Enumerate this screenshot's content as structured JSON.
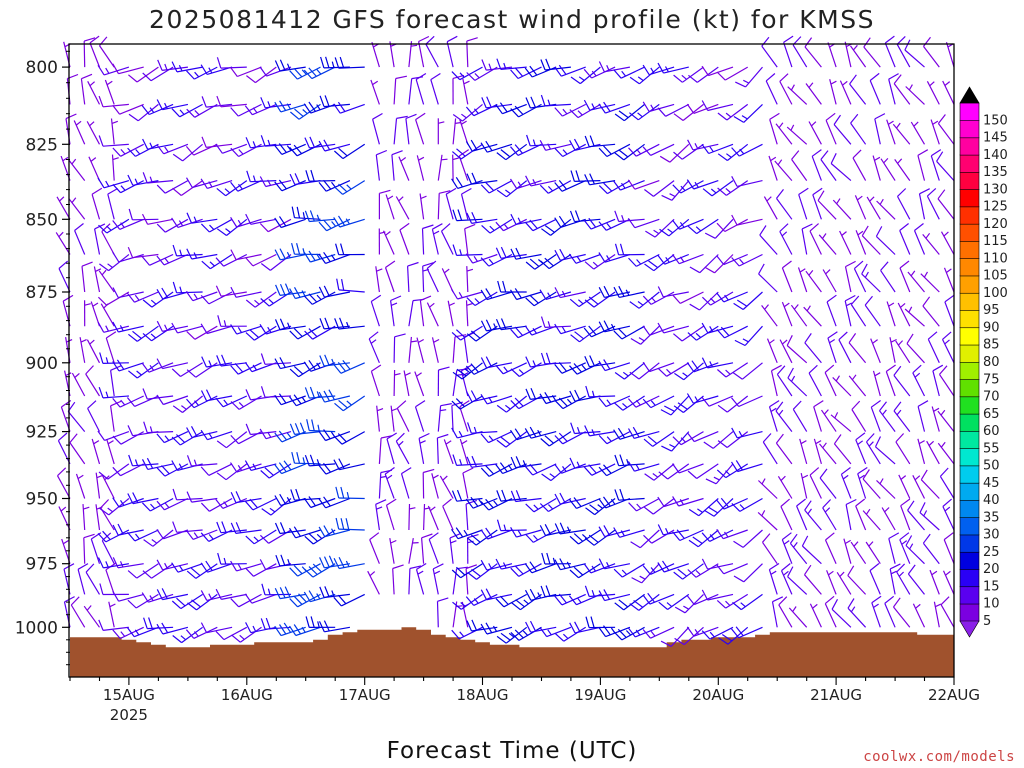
{
  "title": "2025081412 GFS forecast wind profile (kt) for KMSS",
  "credit": "coolwx.com/models",
  "chart_data": {
    "type": "wind-barb-profile",
    "title": "2025081412 GFS forecast wind profile (kt) for KMSS",
    "xlabel": "Forecast Time (UTC)",
    "ylabel": "",
    "y_units": "hPa",
    "y_scale": "log-pressure (reversed)",
    "ylim": [
      1020,
      793
    ],
    "xlim": [
      "2025-08-14 12Z",
      "2025-08-22 00Z"
    ],
    "y_ticks": [
      800,
      825,
      850,
      875,
      900,
      925,
      950,
      975,
      1000
    ],
    "x_ticks": [
      {
        "label": "15AUG",
        "sublabel": "2025",
        "time": "2025-08-15 00Z"
      },
      {
        "label": "16AUG",
        "sublabel": "",
        "time": "2025-08-16 00Z"
      },
      {
        "label": "17AUG",
        "sublabel": "",
        "time": "2025-08-17 00Z"
      },
      {
        "label": "18AUG",
        "sublabel": "",
        "time": "2025-08-18 00Z"
      },
      {
        "label": "19AUG",
        "sublabel": "",
        "time": "2025-08-19 00Z"
      },
      {
        "label": "20AUG",
        "sublabel": "",
        "time": "2025-08-20 00Z"
      },
      {
        "label": "21AUG",
        "sublabel": "",
        "time": "2025-08-21 00Z"
      },
      {
        "label": "22AUG",
        "sublabel": "",
        "time": "2025-08-22 00Z"
      }
    ],
    "forecast_interval_hours": 3,
    "barb_levels_hpa": [
      800,
      812,
      825,
      837,
      850,
      862,
      875,
      887,
      900,
      912,
      925,
      937,
      950,
      962,
      975,
      987,
      1000
    ],
    "colorbar": {
      "units": "kt",
      "labels": [
        5,
        10,
        15,
        20,
        25,
        30,
        35,
        40,
        45,
        50,
        55,
        60,
        65,
        70,
        75,
        80,
        85,
        90,
        95,
        100,
        105,
        110,
        115,
        120,
        125,
        130,
        135,
        140,
        145,
        150
      ],
      "colors": [
        "#7b00e0",
        "#5a00f0",
        "#2a00f5",
        "#0000e0",
        "#0038e8",
        "#0060f0",
        "#0088f0",
        "#00aaf0",
        "#00ccee",
        "#00e8d0",
        "#00e8a0",
        "#00e060",
        "#20e020",
        "#60e000",
        "#a0f000",
        "#e0f000",
        "#ffff00",
        "#ffe000",
        "#ffc000",
        "#ffa000",
        "#ff8800",
        "#ff7000",
        "#ff5000",
        "#ff3000",
        "#ff0000",
        "#ff0040",
        "#ff0070",
        "#ff00a0",
        "#ff00d0",
        "#ff00ff"
      ]
    },
    "surface_pressure_hpa": [
      1004,
      1004,
      1004,
      1004,
      1005,
      1006,
      1007,
      1008,
      1008,
      1008,
      1007,
      1007,
      1007,
      1006,
      1006,
      1006,
      1006,
      1005,
      1003,
      1002,
      1001,
      1001,
      1001,
      1000,
      1001,
      1003,
      1004,
      1005,
      1006,
      1007,
      1007,
      1008,
      1008,
      1008,
      1008,
      1008,
      1008,
      1008,
      1008,
      1008,
      1008,
      1006,
      1005,
      1005,
      1004,
      1004,
      1004,
      1003,
      1002,
      1002,
      1002,
      1002,
      1002,
      1002,
      1002,
      1002,
      1002,
      1002,
      1003,
      1003,
      1003
    ],
    "wind_regimes": [
      {
        "from": "2025-08-14 12Z",
        "to": "2025-08-15 00Z",
        "direction_deg": 340,
        "speed_kt": 8
      },
      {
        "from": "2025-08-15 00Z",
        "to": "2025-08-16 12Z",
        "direction_deg": 250,
        "speed_kt": 15
      },
      {
        "from": "2025-08-16 12Z",
        "to": "2025-08-17 03Z",
        "direction_deg": 255,
        "speed_kt": 25
      },
      {
        "from": "2025-08-17 03Z",
        "to": "2025-08-18 00Z",
        "direction_deg": 350,
        "speed_kt": 10
      },
      {
        "from": "2025-08-18 00Z",
        "to": "2025-08-19 12Z",
        "direction_deg": 250,
        "speed_kt": 20
      },
      {
        "from": "2025-08-19 12Z",
        "to": "2025-08-20 12Z",
        "direction_deg": 240,
        "speed_kt": 15
      },
      {
        "from": "2025-08-20 12Z",
        "to": "2025-08-22 00Z",
        "direction_deg": 330,
        "speed_kt": 10
      }
    ]
  }
}
